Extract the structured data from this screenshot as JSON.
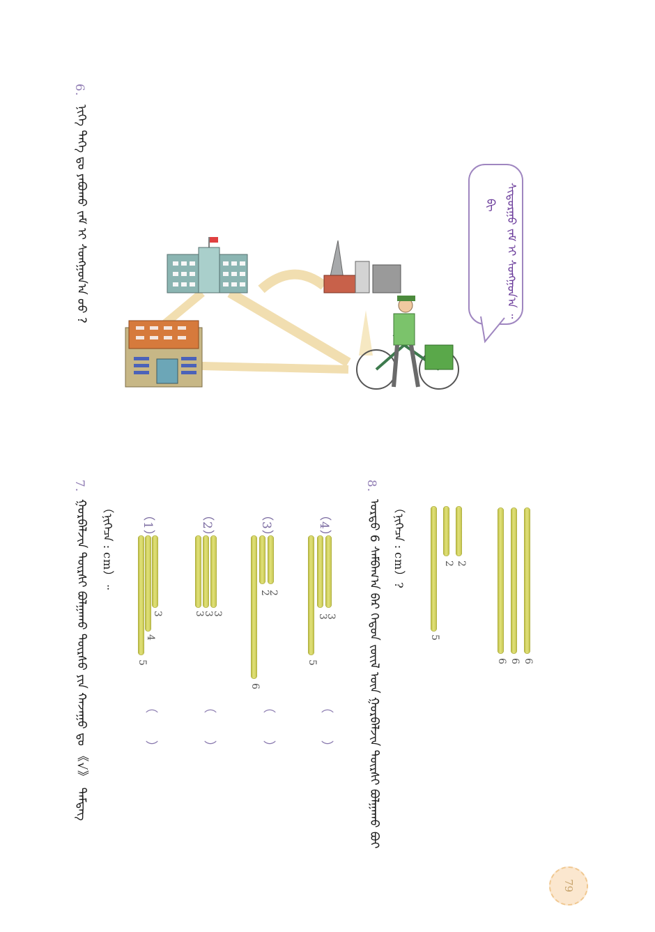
{
  "page_number": "79",
  "q6": {
    "number": "6.",
    "text": "ᠨᠢᠭᠡ ᠲᠡᠭᠡ ᠳᠤ ᠶᠠᠪᠤᠬᠤ ᠵᠠᠮ ᠢ ᠰᠣᠩᠭᠣᠨ᠎ᠠ ᠤᠤ ?"
  },
  "bubble": {
    "line1": "ᠰᠢᠳᠤᠷᠭᠤ ᠵᠠᠮ ᠢ ᠰᠣᠩᠭᠣᠨ᠎ᠠ ᠃",
    "line2": "ᠪᠢ"
  },
  "q7": {
    "number": "7.",
    "text": "ᠭᠤᠷᠪᠠᠯᠵᠢᠨ ᠳᠦᠷᠰᠢ ᠪᠣᠯᠭᠠᠬᠤ ᠳᠦᠷᠰᠦ ᠶᠢᠨ ᠬᠠᠵᠠᠭᠤ ᠳᠤ 《√》 ᠲᠡᠮᠳᠡᠭ",
    "unit": "（ᠨᠢᠭᠡᠴᠡ : cm）᠃",
    "items": [
      {
        "label": "（1）",
        "sticks": [
          "3",
          "4",
          "5"
        ],
        "blank": "（　　）"
      },
      {
        "label": "（2）",
        "sticks": [
          "3",
          "3",
          "3"
        ],
        "blank": "（　　）"
      },
      {
        "label": "（3）",
        "sticks": [
          "2",
          "2",
          "6"
        ],
        "blank": "（　　）"
      },
      {
        "label": "（4）",
        "sticks": [
          "3",
          "3",
          "5"
        ],
        "blank": "（　　）"
      }
    ]
  },
  "q8": {
    "number": "8.",
    "text": "ᠤᠷᠲᠤ 6 ᠰᠠᠮᠪᠠᠭ᠎ᠠ ᠪᠠᠷ ᠬᠡᠳᠦᠨ ᠵᠦᠢᠯ ᠦᠨ ᠭᠤᠷᠪᠠᠯᠵᠢᠨ ᠳᠦᠷᠰᠢ ᠪᠣᠯᠭᠠᠬᠤ ᠪᠤᠢ",
    "unit": "（ᠨᠢᠭᠡᠴᠡ : cm）?",
    "set_a": [
      "2",
      "2",
      "5"
    ],
    "set_b": [
      "6",
      "6",
      "6"
    ]
  }
}
